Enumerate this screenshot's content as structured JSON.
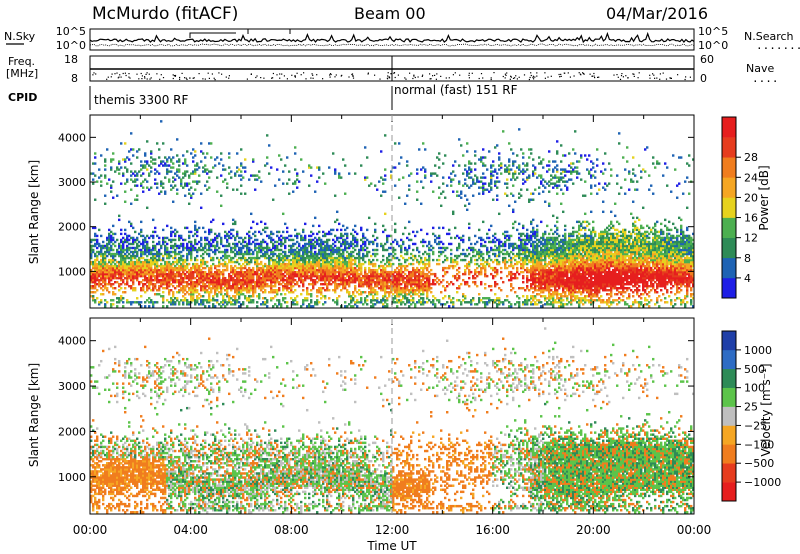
{
  "header": {
    "station": "McMurdo (fitACF)",
    "beam": "Beam 00",
    "date": "04/Mar/2016"
  },
  "noise_panel": {
    "left_label": "N.Sky",
    "right_label": "N.Search",
    "right_dots": "........",
    "left_ticks": [
      "10^5",
      "10^0"
    ],
    "right_ticks": [
      "10^5",
      "10^0"
    ]
  },
  "freq_panel": {
    "left_label_1": "Freq.",
    "left_label_2": "[MHz]",
    "right_label": "Nave",
    "right_dots": "....",
    "left_ticks": [
      "18",
      "8"
    ],
    "right_ticks": [
      "60",
      "0"
    ]
  },
  "cpid": {
    "label": "CPID",
    "segments": [
      {
        "name": "themis 3300 RF",
        "start_hour": 0,
        "end_hour": 12
      },
      {
        "name": "normal (fast) 151 RF",
        "start_hour": 12,
        "end_hour": 24
      }
    ]
  },
  "colors": {
    "power": [
      "#1f1fe6",
      "#1e63b4",
      "#2e8b57",
      "#4caf50",
      "#e6d21e",
      "#f5a623",
      "#f07d1e",
      "#e63c1e",
      "#e61e1e"
    ],
    "velocity": [
      "#1f3fa8",
      "#2e6cc4",
      "#2e8b57",
      "#5cc44a",
      "#bfbfbf",
      "#f5a623",
      "#f07d1e",
      "#e63c1e",
      "#e61e1e"
    ]
  },
  "chart_data": [
    {
      "type": "heatmap",
      "title": "",
      "xlabel": "",
      "ylabel": "Slant Range [km]",
      "x_range_hours": [
        0,
        24
      ],
      "ylim": [
        180,
        4500
      ],
      "y_ticks": [
        "1000",
        "2000",
        "3000",
        "4000"
      ],
      "colorbar": {
        "label": "Power [dB]",
        "range": [
          0,
          32
        ],
        "ticks": [
          "4",
          "8",
          "12",
          "16",
          "20",
          "24",
          "28"
        ]
      }
    },
    {
      "type": "heatmap",
      "title": "",
      "xlabel": "Time UT",
      "ylabel": "Slant Range [km]",
      "x_range_hours": [
        0,
        24
      ],
      "ylim": [
        180,
        4500
      ],
      "x_ticks": [
        "00:00",
        "04:00",
        "08:00",
        "12:00",
        "16:00",
        "20:00",
        "00:00"
      ],
      "y_ticks": [
        "1000",
        "2000",
        "3000",
        "4000"
      ],
      "colorbar": {
        "label": "Velocity [m s⁻¹]",
        "ticks": [
          "1000",
          "500",
          "100",
          "25",
          "−25",
          "−100",
          "−500",
          "−1000"
        ]
      }
    }
  ]
}
